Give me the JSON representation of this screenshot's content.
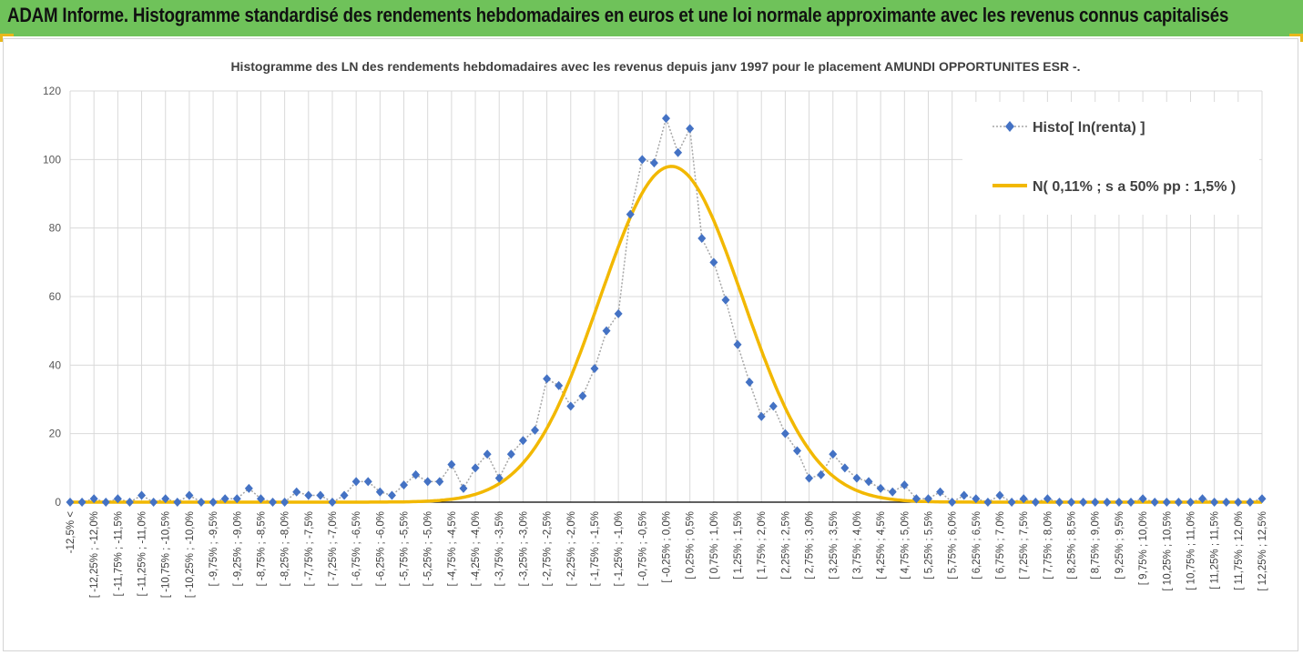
{
  "header": {
    "title": "ADAM Informe. Histogramme standardisé des rendements hebdomadaires en euros et une loi normale approximante avec les revenus connus capitalisés"
  },
  "chart_data": {
    "type": "line",
    "title": "Histogramme  des LN des rendements hebdomadaires avec les revenus depuis janv 1997 pour le placement AMUNDI OPPORTUNITES ESR -.",
    "xlabel": "",
    "ylabel": "",
    "ylim": [
      0,
      120
    ],
    "yticks": [
      0,
      20,
      40,
      60,
      80,
      100,
      120
    ],
    "grid": true,
    "legend_position": "top-right",
    "categories": [
      "-12,5% <",
      "[ -12,25% ; -12,0%",
      "[ -11,75% ; -11,5%",
      "[ -11,25% ; -11,0%",
      "[ -10,75% ; -10,5%",
      "[ -10,25% ; -10,0%",
      "[ -9,75% ; -9,5%",
      "[ -9,25% ; -9,0%",
      "[ -8,75% ; -8,5%",
      "[ -8,25% ; -8,0%",
      "[ -7,75% ; -7,5%",
      "[ -7,25% ; -7,0%",
      "[ -6,75% ; -6,5%",
      "[ -6,25% ; -6,0%",
      "[ -5,75% ; -5,5%",
      "[ -5,25% ; -5,0%",
      "[ -4,75% ; -4,5%",
      "[ -4,25% ; -4,0%",
      "[ -3,75% ; -3,5%",
      "[ -3,25% ; -3,0%",
      "[ -2,75% ; -2,5%",
      "[ -2,25% ; -2,0%",
      "[ -1,75% ; -1,5%",
      "[ -1,25% ; -1,0%",
      "[ -0,75% ; -0,5%",
      "[ -0,25% ; 0,0%",
      "[ 0,25% ; 0,5%",
      "[ 0,75% ; 1,0%",
      "[ 1,25% ; 1,5%",
      "[ 1,75% ; 2,0%",
      "[ 2,25% ; 2,5%",
      "[ 2,75% ; 3,0%",
      "[ 3,25% ; 3,5%",
      "[ 3,75% ; 4,0%",
      "[ 4,25% ; 4,5%",
      "[ 4,75% ; 5,0%",
      "[ 5,25% ; 5,5%",
      "[ 5,75% ; 6,0%",
      "[ 6,25% ; 6,5%",
      "[ 6,75% ; 7,0%",
      "[ 7,25% ; 7,5%",
      "[ 7,75% ; 8,0%",
      "[ 8,25% ; 8,5%",
      "[ 8,75% ; 9,0%",
      "[ 9,25% ; 9,5%",
      "[ 9,75% ; 10,0%",
      "[ 10,25% ; 10,5%",
      "[ 10,75% ; 11,0%",
      "[ 11,25% ; 11,5%",
      "[ 11,75% ; 12,0%",
      "[ 12,25% ; 12,5%"
    ],
    "series": [
      {
        "name": "Histo[ ln(renta) ]",
        "style": "dotted-line-diamond-markers",
        "color": "#4472c4",
        "x": [
          -12.5,
          -12.25,
          -12.0,
          -11.75,
          -11.5,
          -11.25,
          -11.0,
          -10.75,
          -10.5,
          -10.25,
          -10.0,
          -9.75,
          -9.5,
          -9.25,
          -9.0,
          -8.75,
          -8.5,
          -8.25,
          -8.0,
          -7.75,
          -7.5,
          -7.25,
          -7.0,
          -6.75,
          -6.5,
          -6.25,
          -6.0,
          -5.75,
          -5.5,
          -5.25,
          -5.0,
          -4.75,
          -4.5,
          -4.25,
          -4.0,
          -3.75,
          -3.5,
          -3.25,
          -3.0,
          -2.75,
          -2.5,
          -2.25,
          -2.0,
          -1.75,
          -1.5,
          -1.25,
          -1.0,
          -0.75,
          -0.5,
          -0.25,
          0.0,
          0.25,
          0.5,
          0.75,
          1.0,
          1.25,
          1.5,
          1.75,
          2.0,
          2.25,
          2.5,
          2.75,
          3.0,
          3.25,
          3.5,
          3.75,
          4.0,
          4.25,
          4.5,
          4.75,
          5.0,
          5.25,
          5.5,
          5.75,
          6.0,
          6.25,
          6.5,
          6.75,
          7.0,
          7.25,
          7.5,
          7.75,
          8.0,
          8.25,
          8.5,
          8.75,
          9.0,
          9.25,
          9.5,
          9.75,
          10.0,
          10.25,
          10.5,
          10.75,
          11.0,
          11.25,
          11.5,
          11.75,
          12.0,
          12.25,
          12.5
        ],
        "values": [
          0,
          0,
          1,
          0,
          1,
          0,
          2,
          0,
          1,
          0,
          2,
          0,
          0,
          1,
          1,
          4,
          1,
          0,
          0,
          3,
          2,
          2,
          0,
          2,
          6,
          6,
          3,
          2,
          5,
          8,
          6,
          6,
          11,
          4,
          10,
          14,
          7,
          14,
          18,
          21,
          36,
          34,
          28,
          31,
          39,
          50,
          55,
          84,
          100,
          99,
          112,
          102,
          109,
          77,
          70,
          59,
          46,
          35,
          25,
          28,
          20,
          15,
          7,
          8,
          14,
          10,
          7,
          6,
          4,
          3,
          5,
          1,
          1,
          3,
          0,
          2,
          1,
          0,
          2,
          0,
          1,
          0,
          1,
          0,
          0,
          0,
          0,
          0,
          0,
          0,
          1,
          0,
          0,
          0,
          0,
          1,
          0,
          0,
          0,
          0,
          1
        ]
      },
      {
        "name": "N( 0,11% ; s a 50% pp : 1,5% )",
        "style": "smooth-line",
        "color": "#f2b800",
        "mean": 0.11,
        "sd": 1.5,
        "peak": 98
      }
    ]
  }
}
